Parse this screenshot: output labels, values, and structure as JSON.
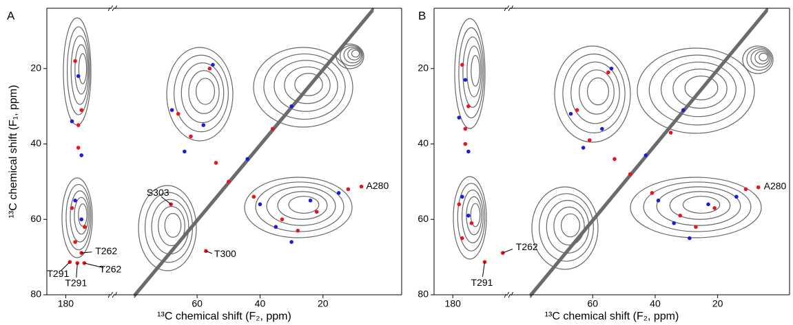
{
  "chart_data": [
    {
      "type": "nmr2d",
      "panel_label": "A",
      "x_label": "¹³C chemical shift (F₂, ppm)",
      "y_label": "¹³C chemical shift (F₁, ppm)",
      "xlim_segments": [
        [
          186,
          166
        ],
        [
          86,
          -5
        ]
      ],
      "xticks": [
        180,
        60,
        40,
        20
      ],
      "ylim": [
        4,
        80
      ],
      "yticks": [
        20,
        40,
        60,
        80
      ],
      "series": [
        {
          "color": "#e8141c",
          "x": [
            177,
            175,
            176,
            178,
            174,
            176,
            177,
            66,
            62,
            56,
            54,
            42,
            33,
            28,
            22,
            12,
            50,
            36
          ],
          "y": [
            18,
            31,
            41,
            57,
            62,
            35,
            66,
            32,
            38,
            20,
            45,
            54,
            60,
            63,
            58,
            52,
            50,
            36
          ]
        },
        {
          "color": "#1c1ce0",
          "x": [
            176,
            178,
            175,
            177,
            175,
            68,
            64,
            58,
            55,
            40,
            35,
            30,
            24,
            15,
            44,
            30
          ],
          "y": [
            22,
            34,
            43,
            55,
            60,
            31,
            42,
            35,
            19,
            56,
            62,
            66,
            55,
            53,
            44,
            30
          ]
        }
      ],
      "annotations": [
        {
          "text": "S303",
          "x": 68.3,
          "y": 56
        },
        {
          "text": "A280",
          "x": 7.8,
          "y": 51.3
        },
        {
          "text": "T262",
          "x": 175,
          "y": 68.9
        },
        {
          "text": "T300",
          "x": 57.2,
          "y": 68.4
        },
        {
          "text": "T291",
          "x": 178.7,
          "y": 71.3
        },
        {
          "text": "T291",
          "x": 176.3,
          "y": 71.6
        },
        {
          "text": "T262",
          "x": 174.1,
          "y": 71.6
        }
      ]
    },
    {
      "type": "nmr2d",
      "panel_label": "B",
      "x_label": "¹³C chemical shift (F₂, ppm)",
      "xlim_segments": [
        [
          186,
          163
        ],
        [
          86,
          -3
        ]
      ],
      "xticks": [
        180,
        60,
        40,
        20
      ],
      "ylim": [
        4,
        80
      ],
      "yticks": [
        20,
        40,
        60,
        80
      ],
      "series": [
        {
          "color": "#e8141c",
          "x": [
            177,
            175,
            176,
            178,
            174,
            176,
            177,
            65,
            61,
            55,
            53,
            41,
            32,
            27,
            21,
            11,
            48,
            35
          ],
          "y": [
            19,
            30,
            40,
            56,
            61,
            36,
            65,
            31,
            39,
            21,
            44,
            53,
            59,
            62,
            57,
            52,
            48,
            37
          ]
        },
        {
          "color": "#1c1ce0",
          "x": [
            176,
            178,
            175,
            177,
            175,
            67,
            63,
            57,
            54,
            39,
            34,
            29,
            23,
            14,
            43,
            31
          ],
          "y": [
            23,
            33,
            42,
            54,
            59,
            32,
            41,
            36,
            20,
            55,
            61,
            65,
            56,
            54,
            43,
            31
          ]
        }
      ],
      "annotations": [
        {
          "text": "T262",
          "x": 164,
          "y": 68.9
        },
        {
          "text": "T291",
          "x": 169.8,
          "y": 71.3
        },
        {
          "text": "A280",
          "x": 7,
          "y": 51.5
        }
      ]
    }
  ]
}
